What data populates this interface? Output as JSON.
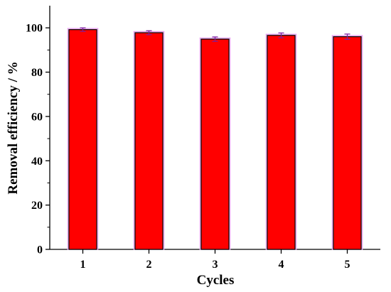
{
  "chart_data": {
    "type": "bar",
    "categories": [
      "1",
      "2",
      "3",
      "4",
      "5"
    ],
    "values": [
      99.2,
      97.8,
      94.9,
      96.6,
      96.0
    ],
    "errors": [
      0.8,
      0.9,
      1.0,
      1.1,
      1.2
    ],
    "xlabel": "Cycles",
    "ylabel": "Removal efficiency / %",
    "ylim": [
      0,
      110
    ],
    "yticks": [
      0,
      20,
      40,
      60,
      80,
      100
    ],
    "grid": false,
    "bar_color": "#ff0000",
    "error_bar_color": "#7a1fa0"
  }
}
